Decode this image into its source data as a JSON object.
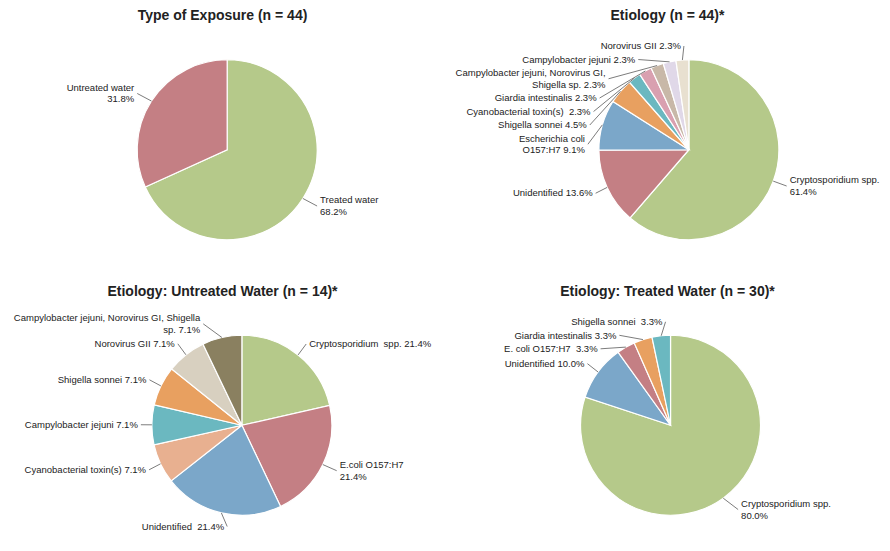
{
  "chart_data": [
    {
      "type": "pie",
      "title": "Type of Exposure (n = 44)",
      "values": [
        68.2,
        31.8
      ],
      "labels": [
        "Treated water\n68.2%",
        "Untreated water\n31.8%"
      ],
      "colors": [
        "#b5c98a",
        "#c47f84"
      ]
    },
    {
      "type": "pie",
      "title": "Etiology (n = 44)*",
      "values": [
        61.4,
        13.6,
        9.1,
        4.5,
        2.3,
        2.3,
        2.3,
        2.3,
        2.3
      ],
      "labels": [
        "Cryptosporidium spp.\n61.4%",
        "Unidentified 13.6%",
        "Escherichia coli\nO157:H7 9.1%",
        "Shigella sonnei 4.5%",
        "Cyanobacterial toxin(s)  2.3%",
        "Giardia intestinalis 2.3%",
        "Campylobacter jejuni, Norovirus GI,\nShigella sp. 2.3%",
        "Campylobacter jejuni 2.3%",
        "Norovirus GII 2.3%"
      ],
      "colors": [
        "#b5c98a",
        "#c47f84",
        "#7ba7c9",
        "#e8a060",
        "#6bb8c0",
        "#d9a0b0",
        "#c8b8a8",
        "#e0d8e8",
        "#e8e0d0"
      ]
    },
    {
      "type": "pie",
      "title": "Etiology: Untreated Water (n = 14)*",
      "values": [
        21.4,
        21.4,
        21.4,
        7.1,
        7.1,
        7.1,
        7.1,
        7.1
      ],
      "labels": [
        "Cryptosporidium  spp. 21.4%",
        "E.coli O157:H7\n21.4%",
        "Unidentified  21.4%",
        "Cyanobacterial toxin(s) 7.1%",
        "Campylobacter jejuni 7.1%",
        "Shigella sonnei 7.1%",
        "Norovirus GII 7.1%",
        "Campylobacter jejuni, Norovirus GI, Shigella\nsp. 7.1%"
      ],
      "colors": [
        "#b5c98a",
        "#c47f84",
        "#7ba7c9",
        "#e8b090",
        "#6bb8c0",
        "#e8a060",
        "#d8d0c0",
        "#8a8060"
      ]
    },
    {
      "type": "pie",
      "title": "Etiology: Treated Water (n = 30)*",
      "values": [
        80.0,
        10.0,
        3.3,
        3.3,
        3.3
      ],
      "labels": [
        "Cryptosporidium spp.\n80.0%",
        "Unidentified 10.0%",
        "E. coli O157:H7  3.3%",
        "Giardia intestinalis 3.3%",
        "Shigella sonnei  3.3%"
      ],
      "colors": [
        "#b5c98a",
        "#7ba7c9",
        "#c47f84",
        "#e8a060",
        "#6bb8c0"
      ]
    }
  ]
}
